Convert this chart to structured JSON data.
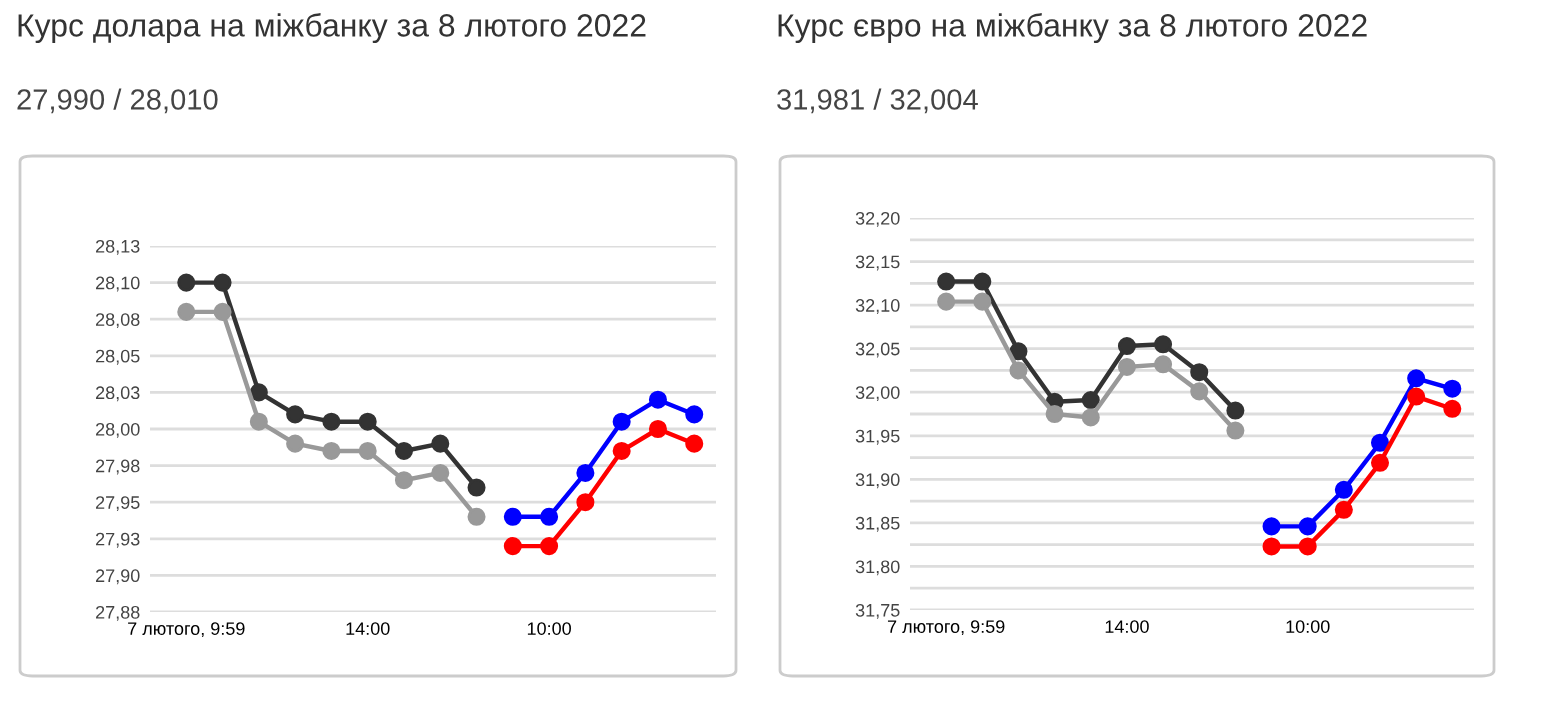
{
  "chart_data": [
    {
      "type": "line",
      "title": "Курс долара на міжбанку за 8 лютого 2022",
      "subtitle": "27,990 / 28,010",
      "categories": [
        "7 лютого, 9:59",
        null,
        null,
        null,
        null,
        "14:00",
        null,
        null,
        null,
        null,
        "10:00",
        null,
        null,
        null,
        null
      ],
      "series": [
        {
          "color": "#333333",
          "values": [
            28.1,
            28.1,
            28.025,
            28.01,
            28.005,
            28.005,
            27.985,
            27.99,
            27.96,
            null,
            null,
            null,
            null,
            null,
            null
          ]
        },
        {
          "color": "#999999",
          "values": [
            28.08,
            28.08,
            28.005,
            27.99,
            27.985,
            27.985,
            27.965,
            27.97,
            27.94,
            null,
            null,
            null,
            null,
            null,
            null
          ]
        },
        {
          "color": "#0000ff",
          "values": [
            null,
            null,
            null,
            null,
            null,
            null,
            null,
            null,
            null,
            27.94,
            27.94,
            27.97,
            28.005,
            28.02,
            28.01
          ]
        },
        {
          "color": "#ff0000",
          "values": [
            null,
            null,
            null,
            null,
            null,
            null,
            null,
            null,
            null,
            27.92,
            27.92,
            27.95,
            27.985,
            28.0,
            27.99
          ]
        }
      ],
      "ylim": [
        27.875,
        28.125
      ],
      "yticks": [
        {
          "value": 27.875,
          "label": "27,88"
        },
        {
          "value": 27.9,
          "label": "27,90"
        },
        {
          "value": 27.925,
          "label": "27,93"
        },
        {
          "value": 27.95,
          "label": "27,95"
        },
        {
          "value": 27.975,
          "label": "27,98"
        },
        {
          "value": 28.0,
          "label": "28,00"
        },
        {
          "value": 28.025,
          "label": "28,03"
        },
        {
          "value": 28.05,
          "label": "28,05"
        },
        {
          "value": 28.075,
          "label": "28,08"
        },
        {
          "value": 28.1,
          "label": "28,10"
        },
        {
          "value": 28.125,
          "label": "28,13"
        }
      ],
      "grid": "y",
      "marker": "circle",
      "line_style": "solid"
    },
    {
      "type": "line",
      "title": "Курс євро на міжбанку за 8 лютого 2022",
      "subtitle": "31,981 / 32,004",
      "categories": [
        "7 лютого, 9:59",
        null,
        null,
        null,
        null,
        "14:00",
        null,
        null,
        null,
        null,
        "10:00",
        null,
        null,
        null,
        null
      ],
      "series": [
        {
          "color": "#333333",
          "values": [
            32.127,
            32.127,
            32.047,
            31.989,
            31.991,
            32.053,
            32.055,
            32.023,
            31.979,
            null,
            null,
            null,
            null,
            null,
            null
          ]
        },
        {
          "color": "#999999",
          "values": [
            32.104,
            32.104,
            32.025,
            31.975,
            31.971,
            32.029,
            32.032,
            32.001,
            31.956,
            null,
            null,
            null,
            null,
            null,
            null
          ]
        },
        {
          "color": "#0000ff",
          "values": [
            null,
            null,
            null,
            null,
            null,
            null,
            null,
            null,
            null,
            31.846,
            31.846,
            31.888,
            31.942,
            32.016,
            32.004
          ]
        },
        {
          "color": "#ff0000",
          "values": [
            null,
            null,
            null,
            null,
            null,
            null,
            null,
            null,
            null,
            31.823,
            31.823,
            31.865,
            31.919,
            31.995,
            31.981
          ]
        }
      ],
      "ylim": [
        31.75,
        32.2
      ],
      "yticks": [
        {
          "value": 31.75,
          "label": "31,75"
        },
        {
          "value": 31.775,
          "label": null
        },
        {
          "value": 31.8,
          "label": "31,80"
        },
        {
          "value": 31.825,
          "label": null
        },
        {
          "value": 31.85,
          "label": "31,85"
        },
        {
          "value": 31.875,
          "label": null
        },
        {
          "value": 31.9,
          "label": "31,90"
        },
        {
          "value": 31.925,
          "label": null
        },
        {
          "value": 31.95,
          "label": "31,95"
        },
        {
          "value": 31.975,
          "label": null
        },
        {
          "value": 32.0,
          "label": "32,00"
        },
        {
          "value": 32.025,
          "label": null
        },
        {
          "value": 32.05,
          "label": "32,05"
        },
        {
          "value": 32.075,
          "label": null
        },
        {
          "value": 32.1,
          "label": "32,10"
        },
        {
          "value": 32.125,
          "label": null
        },
        {
          "value": 32.15,
          "label": "32,15"
        },
        {
          "value": 32.175,
          "label": null
        },
        {
          "value": 32.2,
          "label": "32,20"
        }
      ],
      "grid": "y",
      "marker": "circle",
      "line_style": "solid"
    }
  ]
}
